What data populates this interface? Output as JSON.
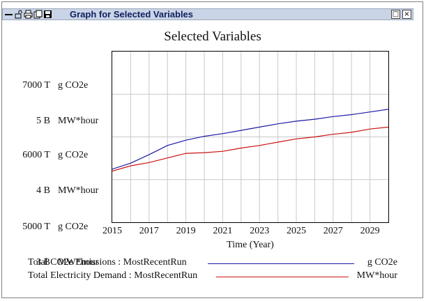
{
  "window": {
    "title": "Graph for Selected Variables",
    "toolbar_icons": [
      "minimize-bar-icon",
      "lock-icon",
      "print-icon",
      "copy-icon",
      "save-icon"
    ],
    "buttons": {
      "restore": "□",
      "close": "×"
    }
  },
  "chart_data": {
    "type": "line",
    "title": "Selected Variables",
    "xlabel": "Time (Year)",
    "x_ticks": [
      "2015",
      "2017",
      "2019",
      "2021",
      "2023",
      "2025",
      "2027",
      "2029"
    ],
    "xlim": [
      2015,
      2030
    ],
    "y_axes": [
      {
        "unit": "g CO2e",
        "ticks": [
          "7000 T",
          "6000 T",
          "5000 T"
        ],
        "ylim_T": [
          4800,
          7400
        ]
      },
      {
        "unit": "MW*hour",
        "ticks": [
          "5 B",
          "4 B",
          "3 B"
        ],
        "ylim_B": [
          2.8,
          5.4
        ]
      }
    ],
    "series": [
      {
        "name": "Total CO2e Emissions : MostRecentRun",
        "unit": "g CO2e",
        "color": "#1a1aa6",
        "x": [
          2015,
          2016,
          2017,
          2018,
          2019,
          2020,
          2021,
          2022,
          2023,
          2024,
          2025,
          2026,
          2027,
          2028,
          2029,
          2030
        ],
        "y": [
          5610,
          5700,
          5830,
          5970,
          6050,
          6110,
          6150,
          6200,
          6250,
          6300,
          6340,
          6370,
          6410,
          6440,
          6480,
          6520
        ]
      },
      {
        "name": "Total Electricity Demand : MostRecentRun",
        "unit": "MW*hour",
        "color": "#cc1111",
        "x": [
          2015,
          2016,
          2017,
          2018,
          2019,
          2020,
          2021,
          2022,
          2023,
          2024,
          2025,
          2026,
          2027,
          2028,
          2029,
          2030
        ],
        "y": [
          3.58,
          3.66,
          3.71,
          3.78,
          3.85,
          3.86,
          3.88,
          3.93,
          3.97,
          4.02,
          4.07,
          4.1,
          4.14,
          4.17,
          4.22,
          4.25
        ]
      }
    ]
  }
}
